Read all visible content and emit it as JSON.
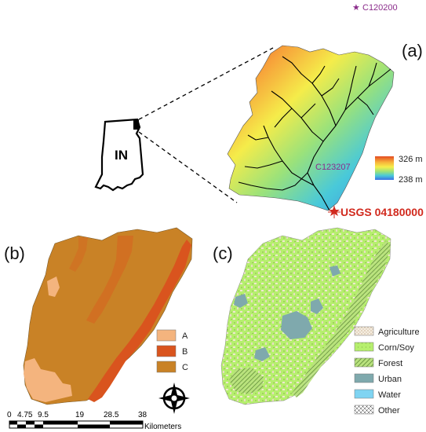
{
  "panels": {
    "a": "(a)",
    "b": "(b)",
    "c": "(c)"
  },
  "stations": {
    "top": "C120200",
    "middle": "C123207",
    "gauge": "USGS 04180000"
  },
  "state_label": "IN",
  "elevation": {
    "max": "326 m",
    "min": "238 m",
    "colors": [
      "#e44b22",
      "#f7b23a",
      "#f6ee4a",
      "#9be27a",
      "#49c9d9",
      "#3b8de6"
    ]
  },
  "soil_legend": [
    {
      "label": "A",
      "color": "#f4b47e"
    },
    {
      "label": "B",
      "color": "#d9541e"
    },
    {
      "label": "C",
      "color": "#c98226"
    }
  ],
  "landuse_legend": [
    {
      "label": "Agriculture",
      "color": "#f3ebdc"
    },
    {
      "label": "Corn/Soy",
      "color": "#b6ef6e"
    },
    {
      "label": "Forest",
      "color": "#8fb85c"
    },
    {
      "label": "Urban",
      "color": "#7fa9ad"
    },
    {
      "label": "Water",
      "color": "#7fd4f2"
    },
    {
      "label": "Other",
      "color": "#ffffff"
    }
  ],
  "scale_bar": {
    "ticks": [
      "0",
      "4.75",
      "9.5",
      "19",
      "28.5",
      "38"
    ],
    "unit": "Kilometers"
  },
  "north_arrow_icon": "north-arrow-icon",
  "gauge_icon": "star-icon"
}
